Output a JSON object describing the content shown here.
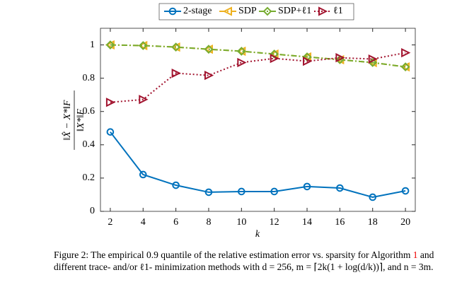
{
  "chart_data": {
    "type": "line",
    "x": [
      2,
      4,
      6,
      8,
      10,
      12,
      14,
      16,
      18,
      20
    ],
    "xlim": [
      1.4,
      20.6
    ],
    "xticks": [
      2,
      4,
      6,
      8,
      10,
      12,
      14,
      16,
      18,
      20
    ],
    "ylim": [
      0,
      1.1
    ],
    "yticks": [
      0,
      0.2,
      0.4,
      0.6,
      0.8,
      1
    ],
    "x_label": "k",
    "y_label_numerator": "‖X̂ − X*‖F",
    "y_label_denominator": "‖X*‖F",
    "legend": "top",
    "series": [
      {
        "name": "2-stage",
        "color": "#0072bd",
        "marker": "circle",
        "dash": "solid",
        "values": [
          0.477,
          0.221,
          0.157,
          0.115,
          0.119,
          0.119,
          0.149,
          0.14,
          0.085,
          0.123
        ]
      },
      {
        "name": "SDP",
        "color": "#edb120",
        "marker": "triangle-left",
        "dash": "dashdot",
        "values": [
          1.0,
          0.996,
          0.987,
          0.974,
          0.962,
          0.945,
          0.928,
          0.911,
          0.894,
          0.868
        ]
      },
      {
        "name": "SDP+ℓ1",
        "color": "#77ac30",
        "marker": "diamond",
        "dash": "dashdot",
        "values": [
          1.0,
          0.996,
          0.987,
          0.974,
          0.962,
          0.945,
          0.928,
          0.911,
          0.894,
          0.868
        ]
      },
      {
        "name": "ℓ1",
        "color": "#a2142f",
        "marker": "triangle-right",
        "dash": "dotted",
        "values": [
          0.655,
          0.672,
          0.83,
          0.817,
          0.894,
          0.919,
          0.902,
          0.923,
          0.915,
          0.953
        ]
      }
    ]
  },
  "caption": [
    "Figure 2: The empirical 0.9 quantile of the relative estimation error vs. sparsity for Algorithm ",
    "1",
    " and different trace- and/or ℓ1- minimization methods with d = 256, m = ⌈2k(1 + log(d/k))⌉, and n = 3m."
  ]
}
